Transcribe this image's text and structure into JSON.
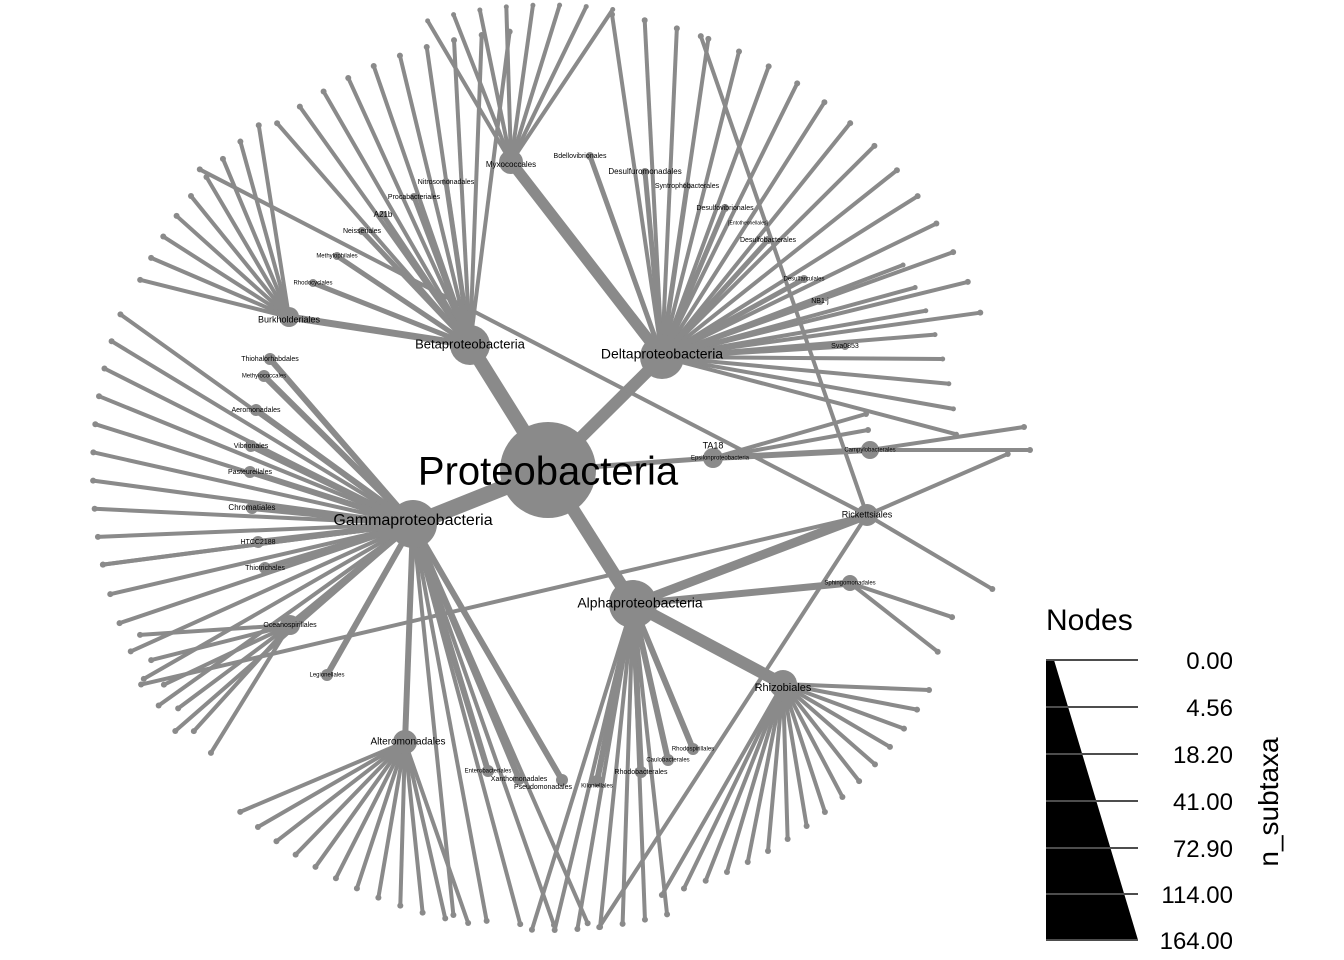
{
  "tree": {
    "root": "Proteobacteria",
    "classes": [
      "Betaproteobacteria",
      "Deltaproteobacteria",
      "Gammaproteobacteria",
      "Alphaproteobacteria",
      "Epsilonproteobacteria",
      "TA18"
    ],
    "orders": {
      "betaproteobacteria": [
        "Burkholderiales",
        "Neisseriales",
        "A21b",
        "Procabacteriales",
        "Nitrosomonadales",
        "Methylophilales",
        "Rhodocyclales"
      ],
      "deltaproteobacteria": [
        "Myxococcales",
        "Bdellovibrionales",
        "Desulfuromonadales",
        "Syntrophobacterales",
        "Desulfovibrionales",
        "[Entotheonellales]",
        "Desulfobacterales",
        "Desulfarculales",
        "NB1-j",
        "Sva0853"
      ],
      "gammaproteobacteria": [
        "Thiohalorhabdales",
        "Methylococcales",
        "Aeromonadales",
        "Vibrionales",
        "Pasteurellales",
        "Chromatiales",
        "HTCC2188",
        "Thiotrichales",
        "Oceanospirillales",
        "Legionellales",
        "Alteromonadales",
        "Enterobacteriales",
        "Xanthomonadales",
        "Pseudomonadales"
      ],
      "alphaproteobacteria": [
        "Rickettsiales",
        "Sphingomonadales",
        "Rhizobiales",
        "Kiloniellales",
        "Rhodobacterales",
        "Caulobacterales",
        "Rhodospirillales"
      ],
      "epsilonproteobacteria": [
        "Campylobacterales"
      ]
    }
  },
  "legend": {
    "title": "Nodes",
    "axis_title": "n_subtaxa",
    "ticks": [
      "0.00",
      "4.56",
      "18.20",
      "41.00",
      "72.90",
      "114.00",
      "164.00"
    ]
  }
}
